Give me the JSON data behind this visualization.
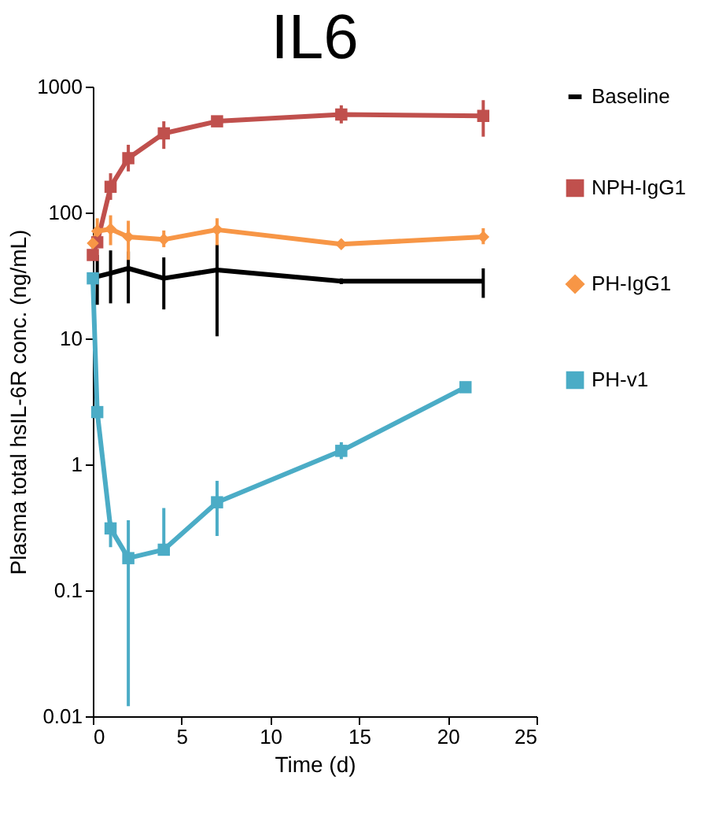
{
  "chart_data": {
    "type": "line",
    "title": "IL6",
    "xlabel": "Time (d)",
    "ylabel": "Plasma total hsIL-6R conc. (ng/mL)",
    "xlim": [
      0,
      25
    ],
    "xticks": [
      0,
      5,
      10,
      15,
      20,
      25
    ],
    "ylim": [
      0.01,
      1000
    ],
    "yticks": [
      0.01,
      0.1,
      1,
      10,
      100,
      1000
    ],
    "log": "y",
    "grid": false,
    "legend": "right",
    "line_style": "solid",
    "series": [
      {
        "name": "Baseline",
        "color": "#000000",
        "marker": "none",
        "x": [
          0.25,
          1,
          2,
          4,
          7,
          14,
          22
        ],
        "values": [
          31,
          33,
          36,
          30,
          35,
          28.5,
          28.5
        ],
        "errors": [
          [
            18.5,
            46
          ],
          [
            19,
            50
          ],
          [
            19,
            49
          ],
          [
            17,
            44
          ],
          [
            10.4,
            56
          ],
          [
            27,
            30
          ],
          [
            21,
            36
          ]
        ]
      },
      {
        "name": "NPH-IgG1",
        "color": "#c0504d",
        "marker": "square",
        "x": [
          0,
          0.25,
          1,
          2,
          4,
          7,
          14,
          22
        ],
        "values": [
          46,
          58,
          160,
          270,
          425,
          530,
          600,
          585
        ],
        "errors": [
          null,
          null,
          [
            126,
            205
          ],
          [
            212,
            345
          ],
          [
            320,
            530
          ],
          [
            490,
            570
          ],
          [
            510,
            710
          ],
          [
            400,
            780
          ]
        ]
      },
      {
        "name": "PH-IgG1",
        "color": "#f79646",
        "marker": "diamond",
        "x": [
          0,
          0.25,
          1,
          2,
          4,
          7,
          14,
          22
        ],
        "values": [
          57,
          71,
          74,
          64,
          61,
          73,
          56,
          64
        ],
        "errors": [
          null,
          [
            56,
            90
          ],
          [
            55,
            95
          ],
          [
            42,
            86
          ],
          [
            53,
            72
          ],
          [
            55,
            90
          ],
          [
            52,
            61
          ],
          [
            56,
            75
          ]
        ]
      },
      {
        "name": "PH-v1",
        "color": "#4bacc6",
        "marker": "square",
        "x": [
          0,
          0.25,
          1,
          2,
          4,
          7,
          14,
          21
        ],
        "values": [
          30,
          2.6,
          0.31,
          0.18,
          0.21,
          0.5,
          1.28,
          4.1
        ],
        "errors": [
          null,
          null,
          [
            0.22,
            0.35
          ],
          [
            0.012,
            0.36
          ],
          [
            0.2,
            0.45
          ],
          [
            0.27,
            0.74
          ],
          [
            1.1,
            1.5
          ],
          null
        ]
      }
    ]
  }
}
